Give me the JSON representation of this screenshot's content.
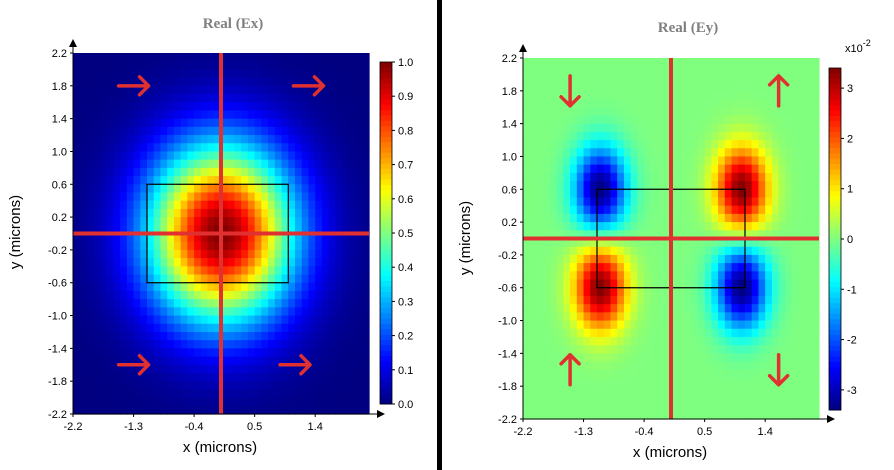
{
  "chart_data": [
    {
      "type": "heatmap",
      "title": "Real (Ex)",
      "xlabel": "x  (microns)",
      "ylabel": "y  (microns)",
      "x_ticks": [
        "-2.2",
        "-1.3",
        "-0.4",
        "0.5",
        "1.4"
      ],
      "y_ticks": [
        "2.2",
        "1.8",
        "1.4",
        "1.0",
        "0.6",
        "0.2",
        "-0.2",
        "-0.6",
        "-1.0",
        "-1.4",
        "-1.8",
        "-2.2"
      ],
      "xlim": [
        -2.2,
        2.2
      ],
      "ylim": [
        -2.2,
        2.2
      ],
      "colorbar_ticks": [
        "1.0",
        "0.9",
        "0.8",
        "0.7",
        "0.6",
        "0.5",
        "0.4",
        "0.3",
        "0.2",
        "0.1",
        "0.0"
      ],
      "colorbar_range": [
        0,
        1
      ],
      "colorbar_exponent": "",
      "field": "single gaussian peak centered at (0,0), max 1.0",
      "guide_lines": {
        "x": 0.0,
        "y": 0.0,
        "color": "#e03030"
      },
      "waveguide_box": {
        "x": [
          -1.1,
          1.0
        ],
        "y": [
          -0.6,
          0.6
        ]
      },
      "arrows": [
        {
          "x": -1.3,
          "y": 1.8,
          "direction": "right"
        },
        {
          "x": 1.3,
          "y": 1.8,
          "direction": "right"
        },
        {
          "x": -1.3,
          "y": -1.6,
          "direction": "right"
        },
        {
          "x": 1.1,
          "y": -1.6,
          "direction": "right"
        }
      ]
    },
    {
      "type": "heatmap",
      "title": "Real (Ey)",
      "xlabel": "x  (microns)",
      "ylabel": "y  (microns)",
      "x_ticks": [
        "-2.2",
        "-1.3",
        "-0.4",
        "0.5",
        "1.4"
      ],
      "y_ticks": [
        "2.2",
        "1.8",
        "1.4",
        "1.0",
        "0.6",
        "0.2",
        "-0.2",
        "-0.6",
        "-1.0",
        "-1.4",
        "-1.8",
        "-2.2"
      ],
      "xlim": [
        -2.2,
        2.2
      ],
      "ylim": [
        -2.2,
        2.2
      ],
      "colorbar_ticks": [
        "3",
        "2",
        "1",
        "0",
        "-1",
        "-2",
        "-3"
      ],
      "colorbar_range": [
        -3.4,
        3.4
      ],
      "colorbar_exponent": "x10",
      "colorbar_exponent_power": "-2",
      "field": "four lobes at corners of waveguide: (+,-) top row (-,+) signs",
      "guide_lines": {
        "x": 0.0,
        "y": 0.0,
        "color": "#e03030"
      },
      "waveguide_box": {
        "x": [
          -1.1,
          1.1
        ],
        "y": [
          -0.6,
          0.6
        ]
      },
      "arrows": [
        {
          "x": -1.5,
          "y": 1.8,
          "direction": "down"
        },
        {
          "x": 1.6,
          "y": 1.8,
          "direction": "up"
        },
        {
          "x": -1.5,
          "y": -1.6,
          "direction": "up"
        },
        {
          "x": 1.6,
          "y": -1.6,
          "direction": "down"
        }
      ]
    }
  ]
}
